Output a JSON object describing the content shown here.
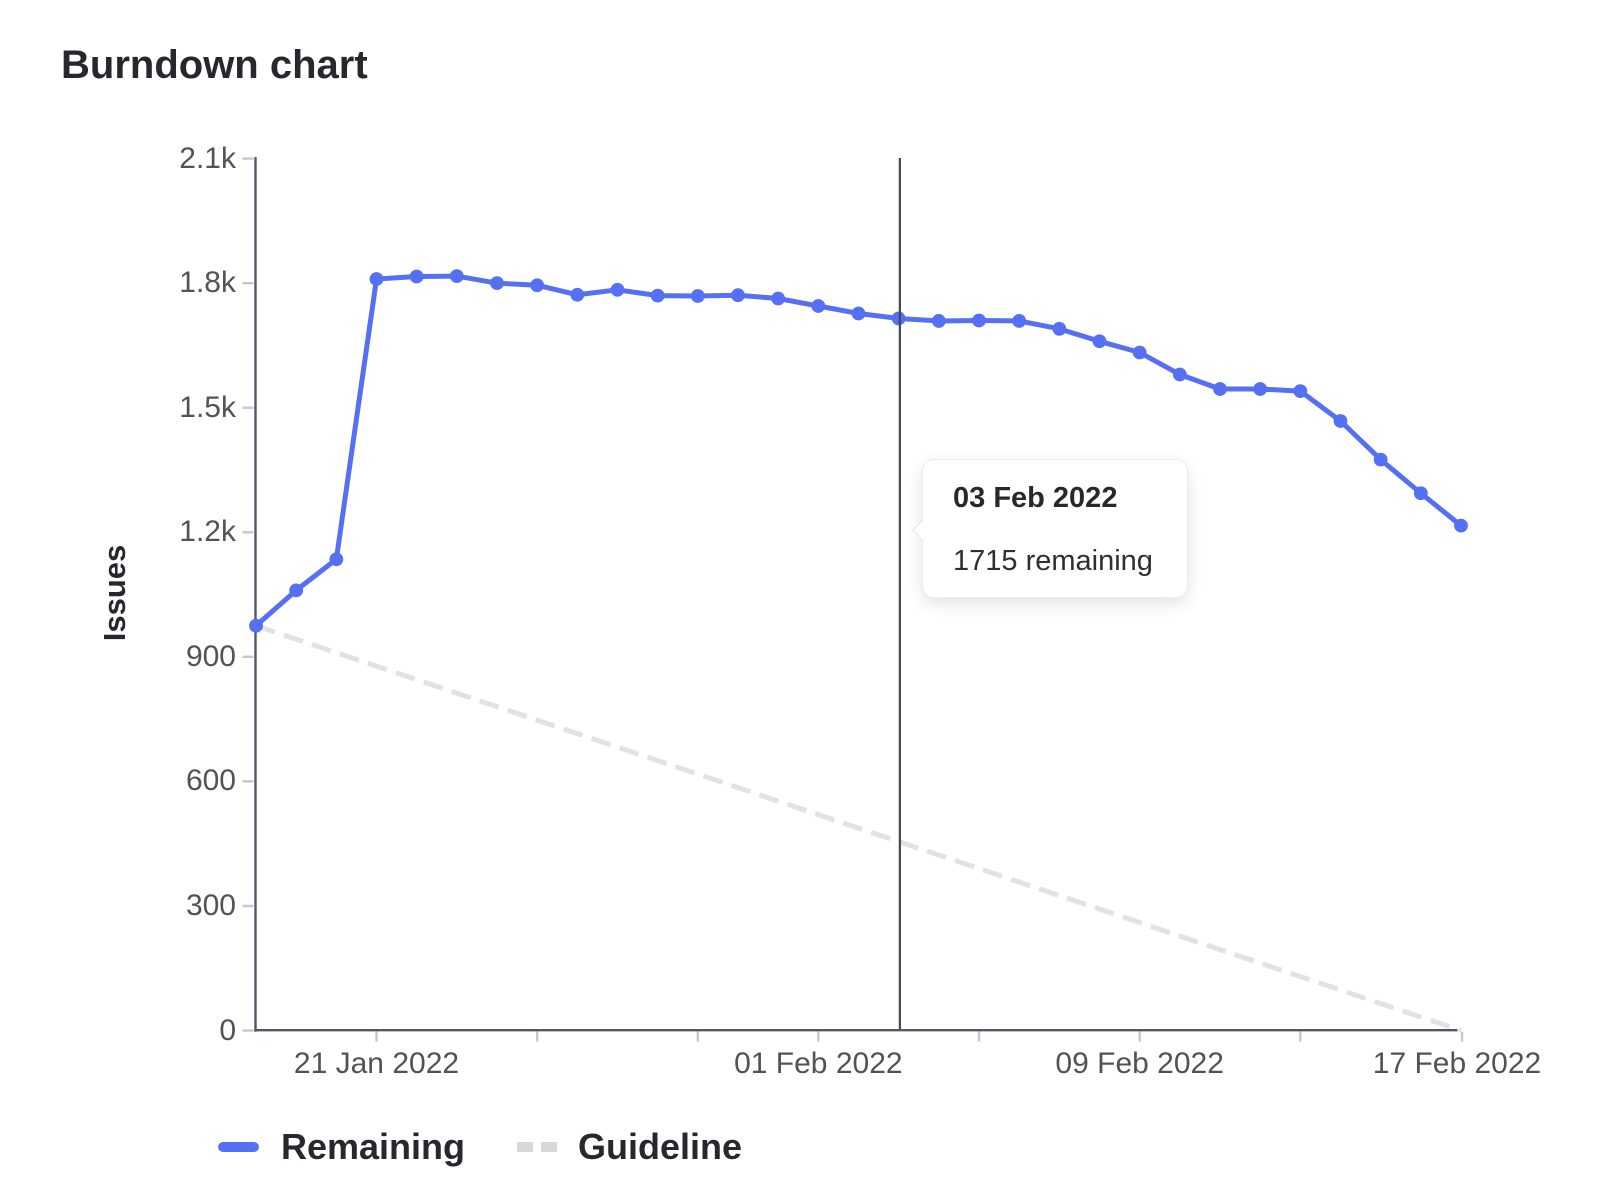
{
  "chart_data": {
    "type": "line",
    "title": "Burndown chart",
    "xlabel": "",
    "ylabel": "Issues",
    "ylim": [
      0,
      2100
    ],
    "y_ticks": [
      0,
      300,
      600,
      900,
      1200,
      1500,
      1800,
      2100
    ],
    "y_tick_labels": [
      "0",
      "300",
      "600",
      "900",
      "1.2k",
      "1.5k",
      "1.8k",
      "2.1k"
    ],
    "x": [
      "18 Jan 2022",
      "19 Jan 2022",
      "20 Jan 2022",
      "21 Jan 2022",
      "22 Jan 2022",
      "23 Jan 2022",
      "24 Jan 2022",
      "25 Jan 2022",
      "26 Jan 2022",
      "27 Jan 2022",
      "28 Jan 2022",
      "29 Jan 2022",
      "30 Jan 2022",
      "31 Jan 2022",
      "01 Feb 2022",
      "02 Feb 2022",
      "03 Feb 2022",
      "04 Feb 2022",
      "05 Feb 2022",
      "06 Feb 2022",
      "07 Feb 2022",
      "08 Feb 2022",
      "09 Feb 2022",
      "10 Feb 2022",
      "11 Feb 2022",
      "12 Feb 2022",
      "13 Feb 2022",
      "14 Feb 2022",
      "15 Feb 2022",
      "16 Feb 2022",
      "17 Feb 2022"
    ],
    "x_axis_tick_dates": [
      "21 Jan 2022",
      "25 Jan 2022",
      "29 Jan 2022",
      "01 Feb 2022",
      "05 Feb 2022",
      "09 Feb 2022",
      "13 Feb 2022",
      "17 Feb 2022"
    ],
    "x_axis_label_dates": [
      "21 Jan 2022",
      "01 Feb 2022",
      "09 Feb 2022",
      "17 Feb 2022"
    ],
    "grid": false,
    "legend_position": "bottom",
    "series": [
      {
        "name": "Remaining",
        "type": "line",
        "style": "solid",
        "marker": "dot",
        "color": "#5570f2",
        "values": [
          975,
          1060,
          1135,
          1810,
          1816,
          1817,
          1800,
          1795,
          1772,
          1784,
          1770,
          1769,
          1771,
          1763,
          1745,
          1727,
          1715,
          1709,
          1710,
          1709,
          1690,
          1660,
          1633,
          1580,
          1545,
          1545,
          1540,
          1468,
          1375,
          1294,
          1216
        ]
      },
      {
        "name": "Guideline",
        "type": "line",
        "style": "dashed",
        "marker": "none",
        "color": "#e2e2e5",
        "start": {
          "date": "18 Jan 2022",
          "value": 975
        },
        "end": {
          "date": "17 Feb 2022",
          "value": 0
        }
      }
    ],
    "today_line": {
      "date": "03 Feb 2022"
    },
    "tooltip": {
      "title": "03 Feb 2022",
      "value": "1715 remaining"
    }
  },
  "colors": {
    "remaining": "#5570f2",
    "guideline": "#e2e2e5",
    "legend_dash": "#d8d8db",
    "axis_line": "#51566b",
    "today_line": "#47484c",
    "tick_mark": "#c6c7cb",
    "axis_text": "#525257",
    "heading_text": "#28272d"
  }
}
